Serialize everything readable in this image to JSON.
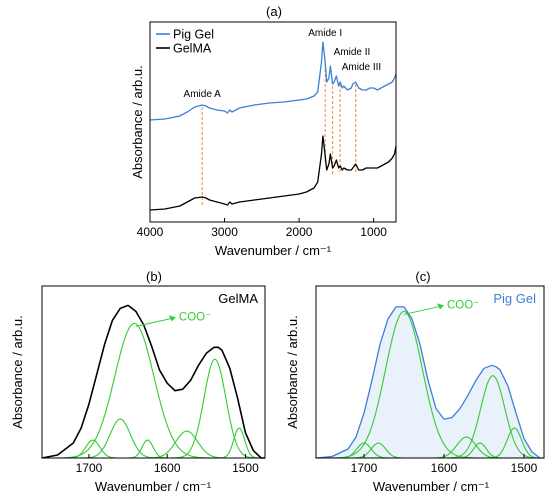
{
  "colors": {
    "pig_gel": "#3d7fd9",
    "gelma": "#000000",
    "component": "#33cc33",
    "guide": "#f08a24"
  },
  "chart_data": [
    {
      "panel_label": "(a)",
      "type": "line",
      "xlabel": "Wavenumber / cm⁻¹",
      "ylabel": "Absorbance / arb.u.",
      "xlim": [
        4000,
        700
      ],
      "x_reversed": true,
      "xticks": [
        4000,
        3000,
        2000,
        1000
      ],
      "legend": {
        "placement": "top-left",
        "entries": [
          "Pig Gel",
          "GelMA"
        ]
      },
      "series": [
        {
          "name": "Pig Gel",
          "x": [
            4000,
            3800,
            3600,
            3500,
            3400,
            3300,
            3250,
            3200,
            3100,
            3000,
            2960,
            2930,
            2900,
            2800,
            2600,
            2400,
            2200,
            2000,
            1900,
            1800,
            1750,
            1700,
            1680,
            1650,
            1630,
            1600,
            1580,
            1550,
            1530,
            1500,
            1470,
            1450,
            1420,
            1400,
            1350,
            1300,
            1280,
            1240,
            1200,
            1150,
            1100,
            1050,
            1000,
            950,
            900,
            850,
            800,
            750,
            720,
            700
          ],
          "y": [
            0.51,
            0.515,
            0.53,
            0.55,
            0.575,
            0.585,
            0.58,
            0.57,
            0.56,
            0.555,
            0.545,
            0.56,
            0.55,
            0.57,
            0.585,
            0.595,
            0.6,
            0.61,
            0.615,
            0.63,
            0.65,
            0.8,
            0.9,
            0.8,
            0.7,
            0.72,
            0.78,
            0.69,
            0.7,
            0.73,
            0.68,
            0.7,
            0.67,
            0.68,
            0.66,
            0.67,
            0.69,
            0.7,
            0.67,
            0.66,
            0.66,
            0.67,
            0.67,
            0.66,
            0.67,
            0.68,
            0.69,
            0.7,
            0.72,
            0.74
          ]
        },
        {
          "name": "GelMA",
          "x": [
            4000,
            3800,
            3600,
            3500,
            3400,
            3300,
            3250,
            3200,
            3100,
            3000,
            2960,
            2930,
            2900,
            2800,
            2600,
            2400,
            2200,
            2000,
            1900,
            1800,
            1750,
            1700,
            1680,
            1650,
            1630,
            1600,
            1580,
            1550,
            1530,
            1500,
            1470,
            1450,
            1420,
            1400,
            1350,
            1300,
            1280,
            1240,
            1200,
            1150,
            1100,
            1050,
            1000,
            950,
            900,
            850,
            800,
            750,
            720,
            700
          ],
          "y": [
            0.06,
            0.065,
            0.08,
            0.1,
            0.12,
            0.125,
            0.12,
            0.11,
            0.1,
            0.09,
            0.085,
            0.1,
            0.09,
            0.1,
            0.11,
            0.12,
            0.13,
            0.14,
            0.15,
            0.17,
            0.2,
            0.34,
            0.43,
            0.33,
            0.26,
            0.29,
            0.34,
            0.27,
            0.28,
            0.31,
            0.27,
            0.28,
            0.26,
            0.27,
            0.26,
            0.26,
            0.27,
            0.29,
            0.26,
            0.26,
            0.27,
            0.27,
            0.27,
            0.27,
            0.28,
            0.29,
            0.3,
            0.32,
            0.34,
            0.38
          ]
        }
      ],
      "annotations": [
        {
          "text": "Amide A",
          "x": 3300
        },
        {
          "text": "Amide I",
          "x": 1650
        },
        {
          "text": "Amide II",
          "x": 1550
        },
        {
          "text": "Amide III",
          "x": 1240
        }
      ],
      "guide_lines_x": [
        3300,
        1650,
        1550,
        1450,
        1240
      ]
    },
    {
      "panel_label": "(b)",
      "type": "line",
      "title": "GelMA",
      "xlabel": "Wavenumber / cm⁻¹",
      "ylabel": "Absorbance / arb.u.",
      "xlim": [
        1760,
        1475
      ],
      "x_reversed": true,
      "xticks": [
        1700,
        1600,
        1500
      ],
      "ylim": [
        0,
        1.15
      ],
      "annotation": {
        "text": "COO⁻",
        "points_to_x": 1640
      },
      "measured": {
        "x": [
          1760,
          1740,
          1720,
          1710,
          1700,
          1690,
          1680,
          1670,
          1660,
          1650,
          1645,
          1640,
          1630,
          1620,
          1610,
          1600,
          1590,
          1580,
          1570,
          1560,
          1550,
          1540,
          1535,
          1530,
          1520,
          1510,
          1500,
          1490,
          1480,
          1475
        ],
        "y": [
          0.0,
          0.02,
          0.1,
          0.2,
          0.36,
          0.56,
          0.76,
          0.92,
          1.0,
          1.02,
          1.0,
          0.98,
          0.89,
          0.75,
          0.59,
          0.5,
          0.45,
          0.46,
          0.52,
          0.62,
          0.7,
          0.74,
          0.74,
          0.72,
          0.6,
          0.4,
          0.17,
          0.05,
          0.0,
          0.0
        ]
      },
      "components": [
        {
          "center": 1642,
          "height": 0.9,
          "width": 25
        },
        {
          "center": 1539,
          "height": 0.66,
          "width": 14
        },
        {
          "center": 1660,
          "height": 0.26,
          "width": 13
        },
        {
          "center": 1575,
          "height": 0.18,
          "width": 14
        },
        {
          "center": 1695,
          "height": 0.12,
          "width": 9
        },
        {
          "center": 1625,
          "height": 0.12,
          "width": 7
        },
        {
          "center": 1508,
          "height": 0.2,
          "width": 7
        }
      ]
    },
    {
      "panel_label": "(c)",
      "type": "line",
      "title": "Pig Gel",
      "xlabel": "Wavenumber / cm⁻¹",
      "ylabel": "Absorbance / arb.u.",
      "xlim": [
        1760,
        1475
      ],
      "x_reversed": true,
      "xticks": [
        1700,
        1600,
        1500
      ],
      "ylim": [
        0,
        1.15
      ],
      "annotation": {
        "text": "COO⁻",
        "points_to_x": 1650
      },
      "measured": {
        "x": [
          1760,
          1740,
          1720,
          1710,
          1700,
          1690,
          1680,
          1670,
          1660,
          1650,
          1640,
          1630,
          1620,
          1610,
          1600,
          1590,
          1580,
          1570,
          1560,
          1550,
          1540,
          1535,
          1530,
          1520,
          1510,
          1500,
          1490,
          1480,
          1475
        ],
        "y": [
          0.0,
          0.01,
          0.06,
          0.14,
          0.3,
          0.52,
          0.76,
          0.93,
          1.01,
          1.01,
          0.93,
          0.76,
          0.52,
          0.33,
          0.26,
          0.27,
          0.33,
          0.42,
          0.52,
          0.6,
          0.62,
          0.61,
          0.59,
          0.48,
          0.3,
          0.13,
          0.04,
          0.0,
          0.0
        ]
      },
      "components": [
        {
          "center": 1650,
          "height": 0.98,
          "width": 23
        },
        {
          "center": 1539,
          "height": 0.55,
          "width": 15
        },
        {
          "center": 1700,
          "height": 0.1,
          "width": 9
        },
        {
          "center": 1682,
          "height": 0.1,
          "width": 9
        },
        {
          "center": 1572,
          "height": 0.14,
          "width": 12
        },
        {
          "center": 1555,
          "height": 0.1,
          "width": 8
        },
        {
          "center": 1512,
          "height": 0.2,
          "width": 9
        }
      ]
    }
  ]
}
